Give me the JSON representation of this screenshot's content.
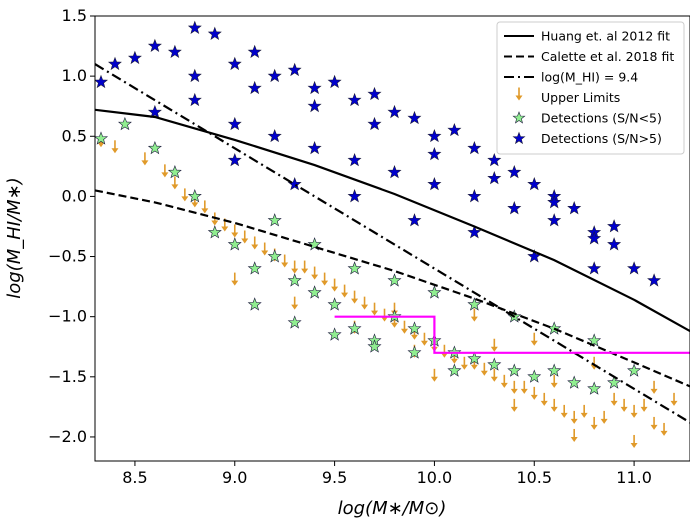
{
  "chart_data": {
    "type": "scatter",
    "title": "",
    "xlabel": "log(M∗/M⊙)",
    "ylabel": "log(M_HI/M∗)",
    "xlim": [
      8.3,
      11.28
    ],
    "ylim": [
      -2.2,
      1.5
    ],
    "x_ticks": [
      8.5,
      9.0,
      9.5,
      10.0,
      10.5,
      11.0
    ],
    "x_tick_labels": [
      "8.5",
      "9.0",
      "9.5",
      "10.0",
      "10.5",
      "11.0"
    ],
    "y_ticks": [
      1.5,
      1.0,
      0.5,
      0.0,
      -0.5,
      -1.0,
      -1.5,
      -2.0
    ],
    "y_tick_labels": [
      "1.5",
      "1.0",
      "0.5",
      "0.0",
      "−0.5",
      "−1.0",
      "−1.5",
      "−2.0"
    ],
    "grid": false,
    "legend_position": "top-right",
    "legend": [
      {
        "label": "Huang et. al 2012 fit",
        "style": "solid",
        "color": "#000000"
      },
      {
        "label": "Calette et al. 2018 fit",
        "style": "dashed",
        "color": "#000000"
      },
      {
        "label": "log(M_HI) = 9.4",
        "style": "dashdot",
        "color": "#000000"
      },
      {
        "label": "Upper Limits",
        "marker": "down-arrow",
        "color": "#e09a2a"
      },
      {
        "label": "Detections (S/N<5)",
        "marker": "star",
        "color": "#90ee90"
      },
      {
        "label": "Detections (S/N>5)",
        "marker": "star",
        "color": "#0000cd"
      }
    ],
    "lines": [
      {
        "name": "Huang et. al 2012 fit",
        "style": "solid",
        "color": "#000000",
        "x": [
          8.3,
          8.6,
          9.0,
          9.4,
          9.8,
          10.2,
          10.6,
          11.0,
          11.28
        ],
        "y": [
          0.72,
          0.66,
          0.47,
          0.26,
          0.02,
          -0.25,
          -0.53,
          -0.86,
          -1.12
        ]
      },
      {
        "name": "Calette et al. 2018 fit",
        "style": "dashed",
        "color": "#000000",
        "x": [
          8.3,
          8.6,
          9.0,
          9.4,
          9.8,
          10.2,
          10.6,
          11.0,
          11.28
        ],
        "y": [
          0.05,
          -0.05,
          -0.22,
          -0.42,
          -0.62,
          -0.85,
          -1.1,
          -1.38,
          -1.58
        ]
      },
      {
        "name": "log(M_HI) = 9.4",
        "style": "dashdot",
        "color": "#000000",
        "x": [
          8.3,
          11.28
        ],
        "y": [
          1.1,
          -1.88
        ]
      },
      {
        "name": "threshold",
        "style": "solid",
        "color": "#ff00ff",
        "x": [
          9.5,
          10.0,
          10.0,
          11.28
        ],
        "y": [
          -1.0,
          -1.0,
          -1.3,
          -1.3
        ]
      }
    ],
    "series": [
      {
        "name": "Upper Limits",
        "marker": "down-arrow",
        "color": "#e09a2a",
        "x": [
          8.33,
          8.4,
          8.55,
          8.65,
          8.7,
          8.75,
          8.8,
          8.85,
          8.9,
          8.95,
          9.0,
          9.05,
          9.1,
          9.15,
          9.2,
          9.25,
          9.3,
          9.35,
          9.4,
          9.45,
          9.5,
          9.55,
          9.6,
          9.65,
          9.7,
          9.75,
          9.8,
          9.85,
          9.9,
          9.95,
          10.0,
          10.05,
          10.1,
          10.15,
          10.2,
          10.25,
          10.3,
          10.35,
          10.4,
          10.45,
          10.5,
          10.55,
          10.6,
          10.65,
          10.7,
          10.75,
          10.8,
          10.85,
          10.9,
          10.95,
          11.0,
          11.05,
          11.1,
          11.15,
          11.2,
          9.0,
          9.3,
          9.6,
          9.9,
          10.2,
          10.5,
          10.8,
          11.1,
          10.0,
          10.4,
          10.7,
          11.0,
          10.3,
          10.6,
          9.8
        ],
        "y": [
          0.45,
          0.4,
          0.3,
          0.2,
          0.1,
          0.0,
          -0.05,
          -0.1,
          -0.2,
          -0.25,
          -0.3,
          -0.35,
          -0.4,
          -0.45,
          -0.5,
          -0.55,
          -0.6,
          -0.6,
          -0.65,
          -0.7,
          -0.75,
          -0.8,
          -0.85,
          -0.9,
          -0.95,
          -1.0,
          -1.05,
          -1.1,
          -1.15,
          -1.2,
          -1.25,
          -1.3,
          -1.35,
          -1.4,
          -1.4,
          -1.45,
          -1.5,
          -1.55,
          -1.6,
          -1.6,
          -1.65,
          -1.7,
          -1.75,
          -1.8,
          -1.85,
          -1.8,
          -1.9,
          -1.85,
          -1.7,
          -1.75,
          -1.8,
          -1.75,
          -1.9,
          -1.95,
          -1.7,
          -0.7,
          -0.9,
          -1.1,
          -1.3,
          -1.0,
          -1.2,
          -1.4,
          -1.6,
          -1.5,
          -1.75,
          -2.0,
          -2.05,
          -1.25,
          -1.55,
          -0.95
        ]
      },
      {
        "name": "Detections (S/N<5)",
        "marker": "star",
        "color": "#90ee90",
        "x": [
          8.33,
          8.45,
          8.6,
          8.7,
          8.8,
          8.9,
          9.0,
          9.1,
          9.2,
          9.3,
          9.4,
          9.5,
          9.6,
          9.7,
          9.8,
          9.9,
          10.0,
          10.1,
          10.2,
          10.3,
          10.4,
          10.5,
          10.6,
          10.7,
          10.8,
          10.9,
          11.0,
          9.2,
          9.4,
          9.6,
          9.8,
          10.0,
          10.2,
          10.4,
          10.6,
          10.8,
          9.1,
          9.3,
          9.5,
          9.7,
          9.9,
          10.1
        ],
        "y": [
          0.48,
          0.6,
          0.4,
          0.2,
          0.0,
          -0.3,
          -0.4,
          -0.6,
          -0.5,
          -0.7,
          -0.8,
          -0.9,
          -1.1,
          -1.2,
          -1.0,
          -1.1,
          -1.2,
          -1.3,
          -1.35,
          -1.4,
          -1.45,
          -1.5,
          -1.45,
          -1.55,
          -1.6,
          -1.55,
          -1.45,
          -0.2,
          -0.4,
          -0.6,
          -0.7,
          -0.8,
          -0.9,
          -1.0,
          -1.1,
          -1.2,
          -0.9,
          -1.05,
          -1.15,
          -1.25,
          -1.3,
          -1.45
        ]
      },
      {
        "name": "Detections (S/N>5)",
        "marker": "star",
        "color": "#0000cd",
        "x": [
          8.33,
          8.4,
          8.5,
          8.6,
          8.7,
          8.8,
          8.9,
          9.0,
          9.1,
          9.2,
          9.3,
          9.4,
          9.5,
          9.6,
          9.7,
          9.8,
          9.9,
          10.0,
          10.1,
          10.2,
          10.3,
          10.4,
          10.5,
          10.6,
          10.7,
          10.8,
          10.9,
          11.0,
          11.1,
          8.6,
          8.8,
          9.0,
          9.2,
          9.4,
          9.6,
          9.8,
          10.0,
          10.2,
          10.4,
          10.6,
          10.8,
          9.0,
          9.3,
          9.6,
          9.9,
          10.2,
          10.5,
          10.8,
          8.8,
          9.1,
          9.4,
          9.7,
          10.0,
          10.3,
          10.6,
          10.9
        ],
        "y": [
          0.95,
          1.1,
          1.15,
          1.25,
          1.2,
          1.4,
          1.35,
          1.1,
          1.2,
          1.0,
          1.05,
          0.9,
          0.95,
          0.8,
          0.85,
          0.7,
          0.65,
          0.5,
          0.55,
          0.4,
          0.3,
          0.2,
          0.1,
          0.0,
          -0.1,
          -0.3,
          -0.4,
          -0.6,
          -0.7,
          0.7,
          0.8,
          0.6,
          0.5,
          0.4,
          0.3,
          0.2,
          0.1,
          0.0,
          -0.1,
          -0.2,
          -0.35,
          0.3,
          0.1,
          0.0,
          -0.2,
          -0.3,
          -0.5,
          -0.6,
          1.0,
          0.9,
          0.75,
          0.6,
          0.35,
          0.15,
          -0.05,
          -0.25
        ]
      }
    ]
  }
}
